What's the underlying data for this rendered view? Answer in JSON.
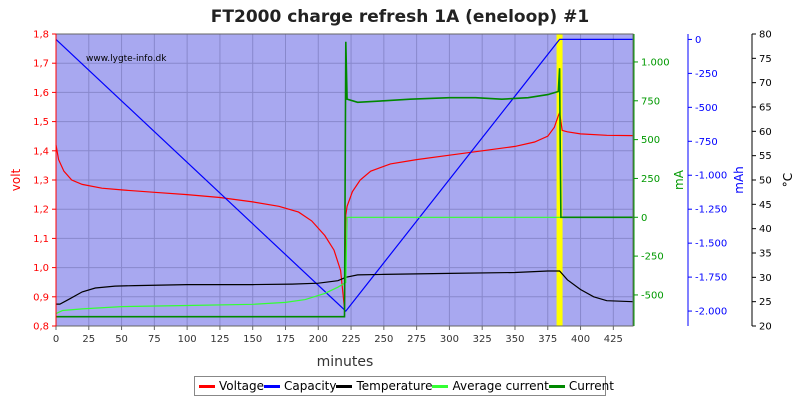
{
  "chart_data": {
    "type": "line",
    "title": "FT2000 charge refresh 1A (eneloop) #1",
    "watermark": "www.lygte-info.dk",
    "xlabel": "minutes",
    "xlim": [
      0,
      440
    ],
    "x_ticks": [
      0,
      25,
      50,
      75,
      100,
      125,
      150,
      175,
      200,
      225,
      250,
      275,
      300,
      325,
      350,
      375,
      400,
      425
    ],
    "background": "#a8a8f0",
    "grid": true,
    "highlight_x": 384,
    "highlight_color": "#ffff00",
    "axes": {
      "volt": {
        "label": "volt",
        "color": "#ff0000",
        "range": [
          0.8,
          1.8
        ],
        "ticks": [
          "0,8",
          "0,9",
          "1,0",
          "1,1",
          "1,2",
          "1,3",
          "1,4",
          "1,5",
          "1,6",
          "1,7",
          "1,8"
        ]
      },
      "mA": {
        "label": "mA",
        "color": "#009900",
        "range": [
          -700,
          1180
        ],
        "ticks": [
          "-500",
          "-250",
          "0",
          "250",
          "500",
          "750",
          "1.000"
        ],
        "tick_values": [
          -500,
          -250,
          0,
          250,
          500,
          750,
          1000
        ]
      },
      "mAh": {
        "label": "mAh",
        "color": "#0000ff",
        "range": [
          -2110,
          40
        ],
        "ticks": [
          "0",
          "-250",
          "-500",
          "-750",
          "-1.000",
          "-1.250",
          "-1.500",
          "-1.750",
          "-2.000"
        ],
        "tick_values": [
          0,
          -250,
          -500,
          -750,
          -1000,
          -1250,
          -1500,
          -1750,
          -2000
        ]
      },
      "temp": {
        "label": "°C",
        "color": "#000000",
        "range": [
          20,
          80
        ],
        "ticks": [
          "20",
          "25",
          "30",
          "35",
          "40",
          "45",
          "50",
          "55",
          "60",
          "65",
          "70",
          "75",
          "80"
        ]
      }
    },
    "series": [
      {
        "name": "Voltage",
        "axis": "volt",
        "color": "#ff0000",
        "points": [
          [
            0,
            1.42
          ],
          [
            2,
            1.37
          ],
          [
            6,
            1.33
          ],
          [
            12,
            1.3
          ],
          [
            20,
            1.285
          ],
          [
            35,
            1.272
          ],
          [
            50,
            1.266
          ],
          [
            75,
            1.258
          ],
          [
            100,
            1.25
          ],
          [
            125,
            1.24
          ],
          [
            150,
            1.225
          ],
          [
            170,
            1.21
          ],
          [
            185,
            1.19
          ],
          [
            195,
            1.16
          ],
          [
            205,
            1.11
          ],
          [
            212,
            1.06
          ],
          [
            217,
            0.99
          ],
          [
            220,
            0.86
          ],
          [
            221,
            1.18
          ],
          [
            222,
            1.21
          ],
          [
            226,
            1.26
          ],
          [
            232,
            1.3
          ],
          [
            240,
            1.33
          ],
          [
            255,
            1.355
          ],
          [
            275,
            1.37
          ],
          [
            300,
            1.385
          ],
          [
            325,
            1.4
          ],
          [
            350,
            1.415
          ],
          [
            365,
            1.43
          ],
          [
            375,
            1.45
          ],
          [
            380,
            1.48
          ],
          [
            383,
            1.52
          ],
          [
            384,
            1.53
          ],
          [
            386,
            1.47
          ],
          [
            390,
            1.465
          ],
          [
            400,
            1.458
          ],
          [
            420,
            1.453
          ],
          [
            440,
            1.452
          ]
        ]
      },
      {
        "name": "Capacity",
        "axis": "mAh",
        "color": "#0000ff",
        "points": [
          [
            0,
            0
          ],
          [
            221,
            -2000
          ],
          [
            384,
            0
          ],
          [
            440,
            0
          ]
        ]
      },
      {
        "name": "Temperature",
        "axis": "temp",
        "color": "#000000",
        "points": [
          [
            0,
            24.5
          ],
          [
            3,
            24.5
          ],
          [
            10,
            25.5
          ],
          [
            20,
            27
          ],
          [
            30,
            27.8
          ],
          [
            45,
            28.2
          ],
          [
            60,
            28.3
          ],
          [
            100,
            28.5
          ],
          [
            150,
            28.5
          ],
          [
            180,
            28.6
          ],
          [
            200,
            28.8
          ],
          [
            215,
            29.3
          ],
          [
            221,
            30
          ],
          [
            230,
            30.5
          ],
          [
            250,
            30.6
          ],
          [
            300,
            30.8
          ],
          [
            350,
            31
          ],
          [
            375,
            31.3
          ],
          [
            384,
            31.3
          ],
          [
            390,
            29.5
          ],
          [
            400,
            27.5
          ],
          [
            410,
            26
          ],
          [
            420,
            25.2
          ],
          [
            440,
            25
          ]
        ]
      },
      {
        "name": "Average current",
        "axis": "mA",
        "color": "#33ff33",
        "points": [
          [
            0,
            -620
          ],
          [
            5,
            -600
          ],
          [
            20,
            -590
          ],
          [
            50,
            -575
          ],
          [
            100,
            -568
          ],
          [
            150,
            -560
          ],
          [
            175,
            -548
          ],
          [
            190,
            -530
          ],
          [
            205,
            -490
          ],
          [
            215,
            -450
          ],
          [
            221,
            -420
          ],
          [
            222,
            0
          ],
          [
            384,
            0
          ],
          [
            386,
            0
          ],
          [
            440,
            0
          ]
        ]
      },
      {
        "name": "Current",
        "axis": "mA",
        "color": "#008800",
        "points": [
          [
            0,
            -640
          ],
          [
            220,
            -640
          ],
          [
            221,
            1130
          ],
          [
            222,
            760
          ],
          [
            230,
            740
          ],
          [
            250,
            750
          ],
          [
            270,
            760
          ],
          [
            300,
            770
          ],
          [
            320,
            770
          ],
          [
            340,
            760
          ],
          [
            360,
            770
          ],
          [
            375,
            790
          ],
          [
            383,
            810
          ],
          [
            384,
            960
          ],
          [
            384.5,
            450
          ],
          [
            385,
            0
          ],
          [
            440,
            0
          ]
        ]
      }
    ]
  },
  "legend": [
    {
      "label": "Voltage",
      "color": "#ff0000"
    },
    {
      "label": "Capacity",
      "color": "#0000ff"
    },
    {
      "label": "Temperature",
      "color": "#000000"
    },
    {
      "label": "Average current",
      "color": "#33ff33"
    },
    {
      "label": "Current",
      "color": "#008800"
    }
  ]
}
